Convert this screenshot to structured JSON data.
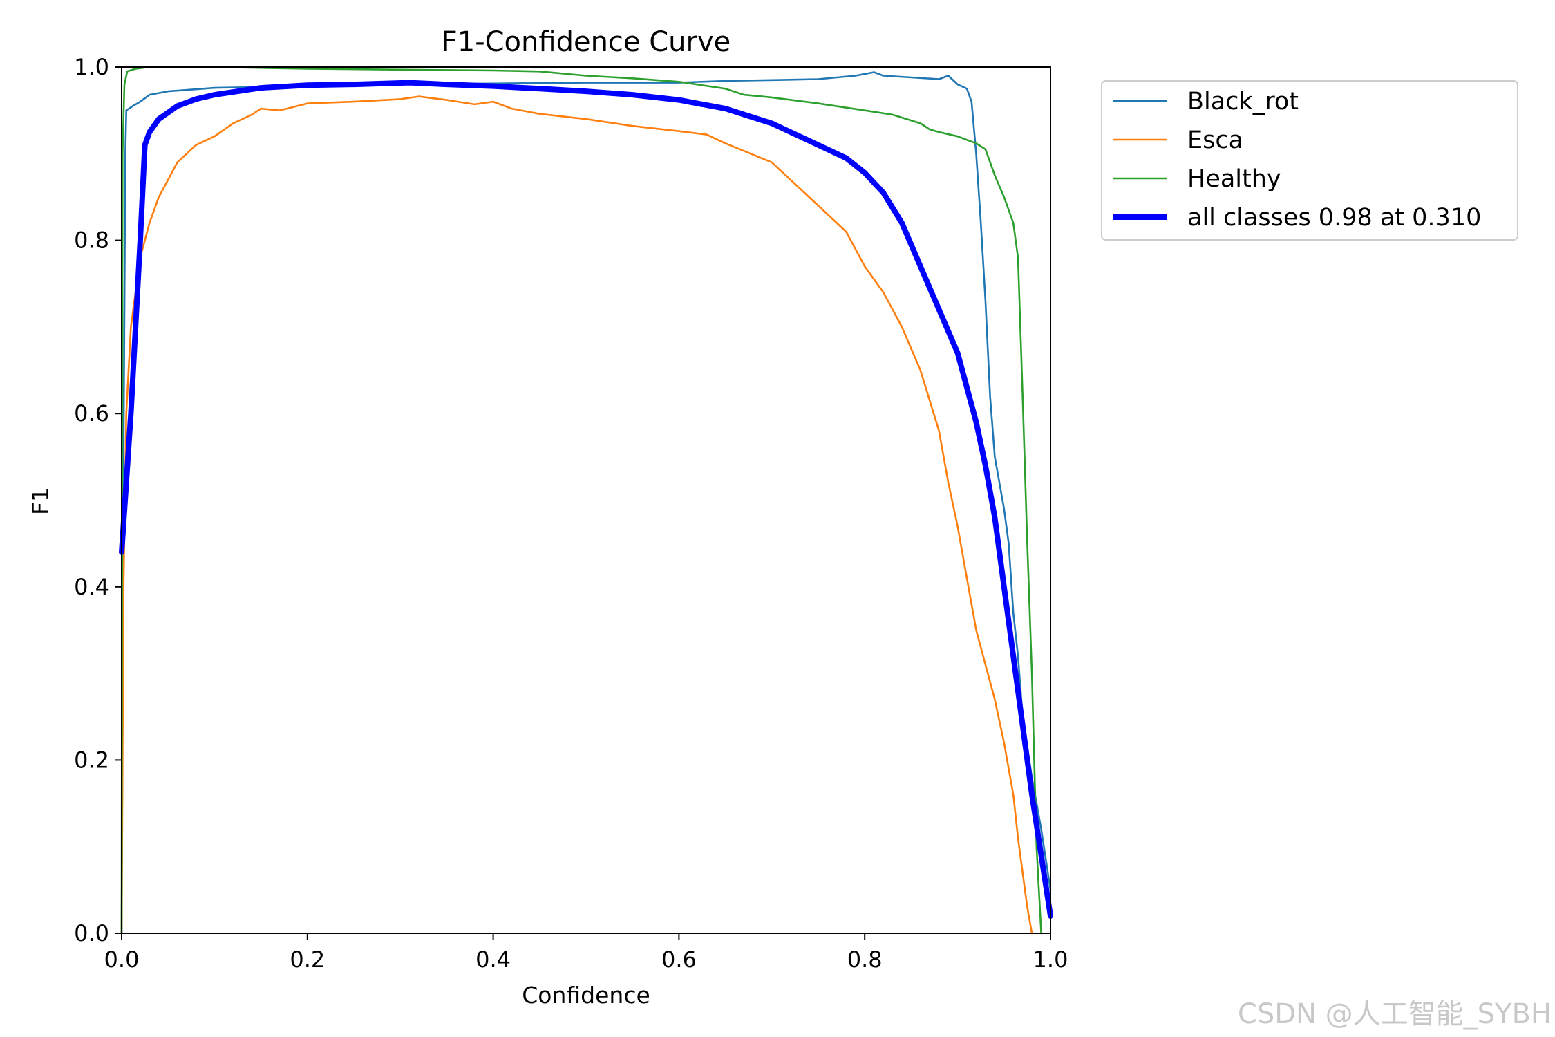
{
  "chart_data": {
    "type": "line",
    "title": "F1-Confidence Curve",
    "xlabel": "Confidence",
    "ylabel": "F1",
    "xlim": [
      0.0,
      1.0
    ],
    "ylim": [
      0.0,
      1.0
    ],
    "xticks": [
      "0.0",
      "0.2",
      "0.4",
      "0.6",
      "0.8",
      "1.0"
    ],
    "yticks": [
      "0.0",
      "0.2",
      "0.4",
      "0.6",
      "0.8",
      "1.0"
    ],
    "grid": false,
    "legend_position": "outside-top-right",
    "series": [
      {
        "name": "Black_rot",
        "color": "#1f77b4",
        "width": "thin",
        "points": [
          [
            0.0,
            0.0
          ],
          [
            0.002,
            0.55
          ],
          [
            0.004,
            0.9
          ],
          [
            0.005,
            0.95
          ],
          [
            0.012,
            0.955
          ],
          [
            0.02,
            0.96
          ],
          [
            0.03,
            0.968
          ],
          [
            0.05,
            0.972
          ],
          [
            0.1,
            0.976
          ],
          [
            0.2,
            0.978
          ],
          [
            0.3,
            0.98
          ],
          [
            0.4,
            0.981
          ],
          [
            0.5,
            0.982
          ],
          [
            0.6,
            0.982
          ],
          [
            0.65,
            0.984
          ],
          [
            0.7,
            0.985
          ],
          [
            0.75,
            0.986
          ],
          [
            0.79,
            0.99
          ],
          [
            0.81,
            0.994
          ],
          [
            0.82,
            0.99
          ],
          [
            0.85,
            0.988
          ],
          [
            0.88,
            0.986
          ],
          [
            0.89,
            0.99
          ],
          [
            0.9,
            0.98
          ],
          [
            0.91,
            0.975
          ],
          [
            0.915,
            0.96
          ],
          [
            0.92,
            0.9
          ],
          [
            0.925,
            0.82
          ],
          [
            0.93,
            0.73
          ],
          [
            0.935,
            0.62
          ],
          [
            0.94,
            0.55
          ],
          [
            0.95,
            0.49
          ],
          [
            0.955,
            0.45
          ],
          [
            0.96,
            0.37
          ],
          [
            0.965,
            0.32
          ],
          [
            0.97,
            0.25
          ],
          [
            0.98,
            0.18
          ],
          [
            0.99,
            0.12
          ],
          [
            1.0,
            0.05
          ]
        ]
      },
      {
        "name": "Esca",
        "color": "#ff7f0e",
        "width": "thin",
        "points": [
          [
            0.0,
            0.0
          ],
          [
            0.002,
            0.4
          ],
          [
            0.005,
            0.6
          ],
          [
            0.01,
            0.7
          ],
          [
            0.02,
            0.78
          ],
          [
            0.03,
            0.82
          ],
          [
            0.04,
            0.85
          ],
          [
            0.05,
            0.87
          ],
          [
            0.06,
            0.89
          ],
          [
            0.07,
            0.9
          ],
          [
            0.08,
            0.91
          ],
          [
            0.1,
            0.92
          ],
          [
            0.12,
            0.935
          ],
          [
            0.14,
            0.945
          ],
          [
            0.15,
            0.952
          ],
          [
            0.17,
            0.95
          ],
          [
            0.2,
            0.958
          ],
          [
            0.25,
            0.96
          ],
          [
            0.3,
            0.963
          ],
          [
            0.32,
            0.966
          ],
          [
            0.35,
            0.962
          ],
          [
            0.38,
            0.957
          ],
          [
            0.4,
            0.96
          ],
          [
            0.42,
            0.952
          ],
          [
            0.45,
            0.946
          ],
          [
            0.5,
            0.94
          ],
          [
            0.55,
            0.932
          ],
          [
            0.6,
            0.926
          ],
          [
            0.63,
            0.922
          ],
          [
            0.65,
            0.912
          ],
          [
            0.7,
            0.89
          ],
          [
            0.72,
            0.87
          ],
          [
            0.74,
            0.85
          ],
          [
            0.76,
            0.83
          ],
          [
            0.78,
            0.81
          ],
          [
            0.8,
            0.77
          ],
          [
            0.82,
            0.74
          ],
          [
            0.84,
            0.7
          ],
          [
            0.86,
            0.65
          ],
          [
            0.88,
            0.58
          ],
          [
            0.89,
            0.52
          ],
          [
            0.9,
            0.47
          ],
          [
            0.91,
            0.41
          ],
          [
            0.92,
            0.35
          ],
          [
            0.93,
            0.31
          ],
          [
            0.94,
            0.27
          ],
          [
            0.95,
            0.22
          ],
          [
            0.96,
            0.16
          ],
          [
            0.965,
            0.11
          ],
          [
            0.97,
            0.07
          ],
          [
            0.975,
            0.03
          ],
          [
            0.98,
            0.0
          ]
        ]
      },
      {
        "name": "Healthy",
        "color": "#2ca02c",
        "width": "thin",
        "points": [
          [
            0.0,
            0.0
          ],
          [
            0.001,
            0.9
          ],
          [
            0.003,
            0.98
          ],
          [
            0.006,
            0.995
          ],
          [
            0.015,
            0.998
          ],
          [
            0.03,
            1.0
          ],
          [
            0.1,
            1.0
          ],
          [
            0.2,
            0.998
          ],
          [
            0.3,
            0.997
          ],
          [
            0.4,
            0.996
          ],
          [
            0.45,
            0.995
          ],
          [
            0.5,
            0.99
          ],
          [
            0.55,
            0.987
          ],
          [
            0.6,
            0.983
          ],
          [
            0.65,
            0.975
          ],
          [
            0.67,
            0.968
          ],
          [
            0.7,
            0.965
          ],
          [
            0.75,
            0.958
          ],
          [
            0.8,
            0.95
          ],
          [
            0.83,
            0.945
          ],
          [
            0.86,
            0.935
          ],
          [
            0.87,
            0.928
          ],
          [
            0.88,
            0.925
          ],
          [
            0.9,
            0.92
          ],
          [
            0.92,
            0.912
          ],
          [
            0.93,
            0.905
          ],
          [
            0.94,
            0.875
          ],
          [
            0.95,
            0.85
          ],
          [
            0.96,
            0.82
          ],
          [
            0.965,
            0.78
          ],
          [
            0.97,
            0.62
          ],
          [
            0.975,
            0.45
          ],
          [
            0.98,
            0.3
          ],
          [
            0.985,
            0.1
          ],
          [
            0.99,
            0.0
          ]
        ]
      },
      {
        "name": "all classes 0.98 at 0.310",
        "color": "#0000ff",
        "width": "thick",
        "points": [
          [
            0.0,
            0.44
          ],
          [
            0.01,
            0.6
          ],
          [
            0.02,
            0.8
          ],
          [
            0.025,
            0.91
          ],
          [
            0.03,
            0.925
          ],
          [
            0.04,
            0.94
          ],
          [
            0.06,
            0.955
          ],
          [
            0.08,
            0.963
          ],
          [
            0.1,
            0.968
          ],
          [
            0.15,
            0.976
          ],
          [
            0.2,
            0.979
          ],
          [
            0.25,
            0.98
          ],
          [
            0.31,
            0.982
          ],
          [
            0.35,
            0.98
          ],
          [
            0.4,
            0.978
          ],
          [
            0.45,
            0.975
          ],
          [
            0.5,
            0.972
          ],
          [
            0.55,
            0.968
          ],
          [
            0.6,
            0.962
          ],
          [
            0.65,
            0.952
          ],
          [
            0.7,
            0.935
          ],
          [
            0.75,
            0.91
          ],
          [
            0.78,
            0.895
          ],
          [
            0.8,
            0.878
          ],
          [
            0.82,
            0.855
          ],
          [
            0.84,
            0.82
          ],
          [
            0.86,
            0.77
          ],
          [
            0.88,
            0.72
          ],
          [
            0.9,
            0.67
          ],
          [
            0.92,
            0.59
          ],
          [
            0.93,
            0.54
          ],
          [
            0.94,
            0.48
          ],
          [
            0.95,
            0.4
          ],
          [
            0.96,
            0.32
          ],
          [
            0.97,
            0.24
          ],
          [
            0.98,
            0.16
          ],
          [
            0.99,
            0.09
          ],
          [
            1.0,
            0.02
          ]
        ]
      }
    ]
  },
  "watermark": "CSDN @人工智能_SYBH"
}
